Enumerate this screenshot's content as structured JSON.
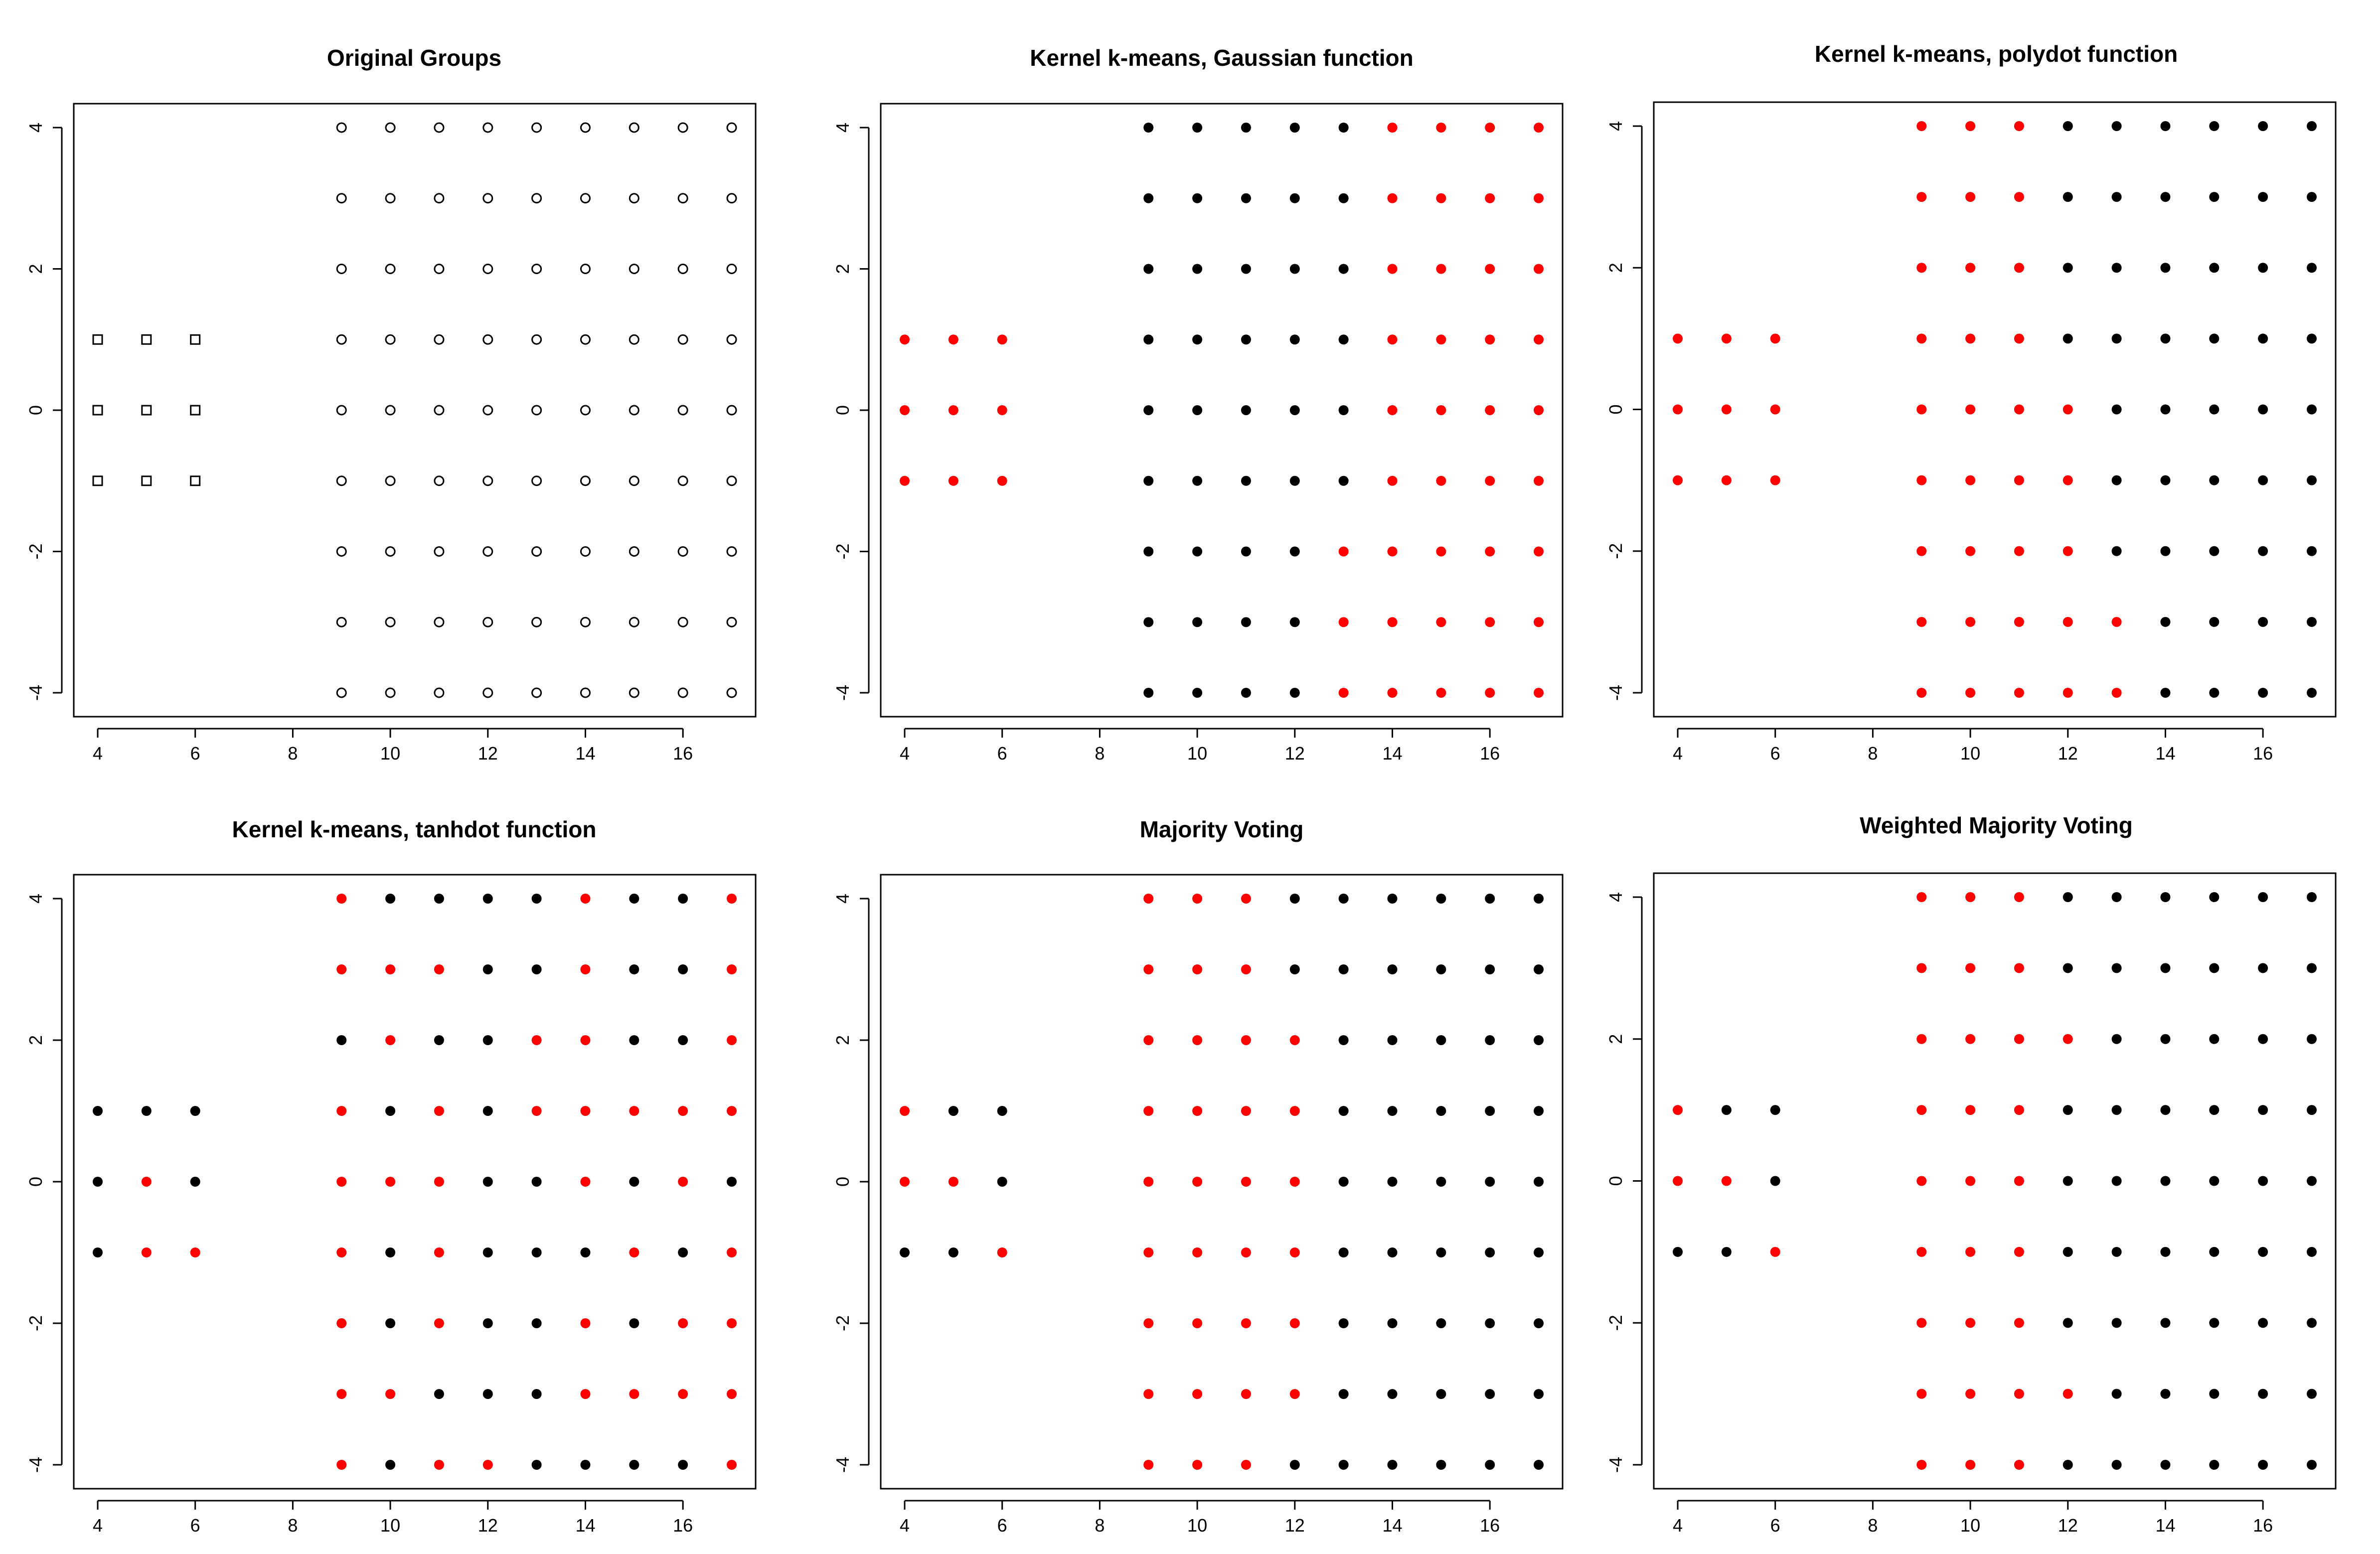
{
  "figure": {
    "description_free": true
  },
  "colors": {
    "red": "#ff0000",
    "black": "#000000",
    "axis": "#000000"
  },
  "chart_data": [
    {
      "type": "scatter",
      "title": "Original Groups",
      "xlim": [
        4,
        17
      ],
      "ylim": [
        -4,
        4
      ],
      "xticks": [
        4,
        6,
        8,
        10,
        12,
        14,
        16
      ],
      "yticks": [
        -4,
        -2,
        0,
        2,
        4
      ],
      "xlabel": "",
      "ylabel": "",
      "style": "original",
      "left_group": {
        "x": [
          4,
          5,
          6
        ],
        "y": [
          -1,
          0,
          1
        ],
        "marker": "open-square"
      },
      "right_group": {
        "x": [
          9,
          10,
          11,
          12,
          13,
          14,
          15,
          16,
          17
        ],
        "y": [
          -4,
          -3,
          -2,
          -1,
          0,
          1,
          2,
          3,
          4
        ],
        "marker": "open-circle"
      }
    },
    {
      "type": "scatter",
      "title": "Kernel k-means, Gaussian function",
      "xlim": [
        4,
        17
      ],
      "ylim": [
        -4,
        4
      ],
      "xticks": [
        4,
        6,
        8,
        10,
        12,
        14,
        16
      ],
      "yticks": [
        -4,
        -2,
        0,
        2,
        4
      ],
      "xlabel": "",
      "ylabel": "",
      "style": "cluster",
      "left_group": {
        "x": [
          4,
          5,
          6
        ],
        "y": [
          1,
          0,
          -1
        ],
        "labels": [
          "RRR",
          "RRR",
          "RRR"
        ]
      },
      "right_group": {
        "x": [
          9,
          10,
          11,
          12,
          13,
          14,
          15,
          16,
          17
        ],
        "y": [
          4,
          3,
          2,
          1,
          0,
          -1,
          -2,
          -3,
          -4
        ],
        "labels": [
          "BBBBBRRRR",
          "BBBBBRRRR",
          "BBBBBRRRR",
          "BBBBBRRRR",
          "BBBBBRRRR",
          "BBBBBRRRR",
          "BBBBRRRRR",
          "BBBBRRRRR",
          "BBBBRRRRR"
        ]
      }
    },
    {
      "type": "scatter",
      "title": "Kernel k-means, polydot function",
      "xlim": [
        4,
        17
      ],
      "ylim": [
        -4,
        4
      ],
      "xticks": [
        4,
        6,
        8,
        10,
        12,
        14,
        16
      ],
      "yticks": [
        -4,
        -2,
        0,
        2,
        4
      ],
      "xlabel": "",
      "ylabel": "",
      "style": "cluster",
      "left_group": {
        "x": [
          4,
          5,
          6
        ],
        "y": [
          1,
          0,
          -1
        ],
        "labels": [
          "RRR",
          "RRR",
          "RRR"
        ]
      },
      "right_group": {
        "x": [
          9,
          10,
          11,
          12,
          13,
          14,
          15,
          16,
          17
        ],
        "y": [
          4,
          3,
          2,
          1,
          0,
          -1,
          -2,
          -3,
          -4
        ],
        "labels": [
          "RRRBBBBBB",
          "RRRBBBBBB",
          "RRRBBBBBB",
          "RRRBBBBBB",
          "RRRRBBBBB",
          "RRRRBBBBB",
          "RRRRBBBBB",
          "RRRRRBBBB",
          "RRRRRBBBB"
        ]
      }
    },
    {
      "type": "scatter",
      "title": "Kernel k-means, tanhdot function",
      "xlim": [
        4,
        17
      ],
      "ylim": [
        -4,
        4
      ],
      "xticks": [
        4,
        6,
        8,
        10,
        12,
        14,
        16
      ],
      "yticks": [
        -4,
        -2,
        0,
        2,
        4
      ],
      "xlabel": "",
      "ylabel": "",
      "style": "cluster",
      "left_group": {
        "x": [
          4,
          5,
          6
        ],
        "y": [
          1,
          0,
          -1
        ],
        "labels": [
          "BBB",
          "BRB",
          "BRR"
        ]
      },
      "right_group": {
        "x": [
          9,
          10,
          11,
          12,
          13,
          14,
          15,
          16,
          17
        ],
        "y": [
          4,
          3,
          2,
          1,
          0,
          -1,
          -2,
          -3,
          -4
        ],
        "labels": [
          "RBBBBRBBR",
          "RRRBBRBBR",
          "BRBBRRBBR",
          "RBRBRRRRR",
          "RRRBBRBRB",
          "RBRBBBRBR",
          "RBRBBRBRR",
          "RRBBBRRRR",
          "RBRRBBBBR"
        ]
      }
    },
    {
      "type": "scatter",
      "title": "Majority Voting",
      "xlim": [
        4,
        17
      ],
      "ylim": [
        -4,
        4
      ],
      "xticks": [
        4,
        6,
        8,
        10,
        12,
        14,
        16
      ],
      "yticks": [
        -4,
        -2,
        0,
        2,
        4
      ],
      "xlabel": "",
      "ylabel": "",
      "style": "cluster",
      "left_group": {
        "x": [
          4,
          5,
          6
        ],
        "y": [
          1,
          0,
          -1
        ],
        "labels": [
          "RBB",
          "RRB",
          "BBR"
        ]
      },
      "right_group": {
        "x": [
          9,
          10,
          11,
          12,
          13,
          14,
          15,
          16,
          17
        ],
        "y": [
          4,
          3,
          2,
          1,
          0,
          -1,
          -2,
          -3,
          -4
        ],
        "labels": [
          "RRRBBBBBB",
          "RRRBBBBBB",
          "RRRRBBBBB",
          "RRRRBBBBB",
          "RRRRBBBBB",
          "RRRRBBBBB",
          "RRRRBBBBB",
          "RRRRBBBBB",
          "RRRBBBBBB"
        ]
      }
    },
    {
      "type": "scatter",
      "title": "Weighted Majority Voting",
      "xlim": [
        4,
        17
      ],
      "ylim": [
        -4,
        4
      ],
      "xticks": [
        4,
        6,
        8,
        10,
        12,
        14,
        16
      ],
      "yticks": [
        -4,
        -2,
        0,
        2,
        4
      ],
      "xlabel": "",
      "ylabel": "",
      "style": "cluster",
      "left_group": {
        "x": [
          4,
          5,
          6
        ],
        "y": [
          1,
          0,
          -1
        ],
        "labels": [
          "RBB",
          "RRB",
          "BBR"
        ]
      },
      "right_group": {
        "x": [
          9,
          10,
          11,
          12,
          13,
          14,
          15,
          16,
          17
        ],
        "y": [
          4,
          3,
          2,
          1,
          0,
          -1,
          -2,
          -3,
          -4
        ],
        "labels": [
          "RRRBBBBBB",
          "RRRBBBBBB",
          "RRRRBBBBB",
          "RRRBBBBBB",
          "RRRBBBBBB",
          "RRRBBBBBB",
          "RRRBBBBBB",
          "RRRRBBBBB",
          "RRRBBBBBB"
        ]
      }
    }
  ]
}
